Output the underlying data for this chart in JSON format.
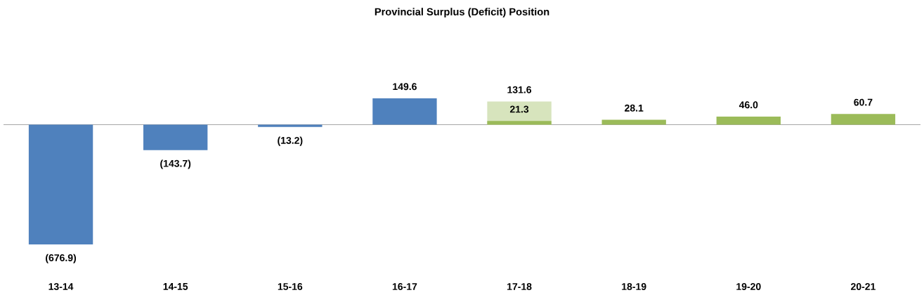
{
  "chart_data": {
    "type": "bar",
    "title": "Provincial Surplus (Deficit) Position",
    "categories": [
      "13-14",
      "14-15",
      "15-16",
      "16-17",
      "17-18",
      "18-19",
      "19-20",
      "20-21"
    ],
    "series": [
      {
        "color": "#4f81bd",
        "values": [
          -676.9,
          -143.7,
          -13.2,
          149.6,
          null,
          null,
          null,
          null
        ],
        "value_labels": [
          "(676.9)",
          "(143.7)",
          "(13.2)",
          "149.6",
          null,
          null,
          null,
          null
        ]
      },
      {
        "color": "#d7e4bd",
        "values": [
          null,
          null,
          null,
          null,
          131.6,
          null,
          null,
          null
        ],
        "value_labels": [
          null,
          null,
          null,
          null,
          "131.6",
          null,
          null,
          null
        ]
      },
      {
        "color": "#9bbb59",
        "values": [
          null,
          null,
          null,
          null,
          21.3,
          28.1,
          46.0,
          60.7
        ],
        "value_labels": [
          null,
          null,
          null,
          null,
          "21.3",
          "28.1",
          "46.0",
          "60.7"
        ]
      }
    ]
  }
}
